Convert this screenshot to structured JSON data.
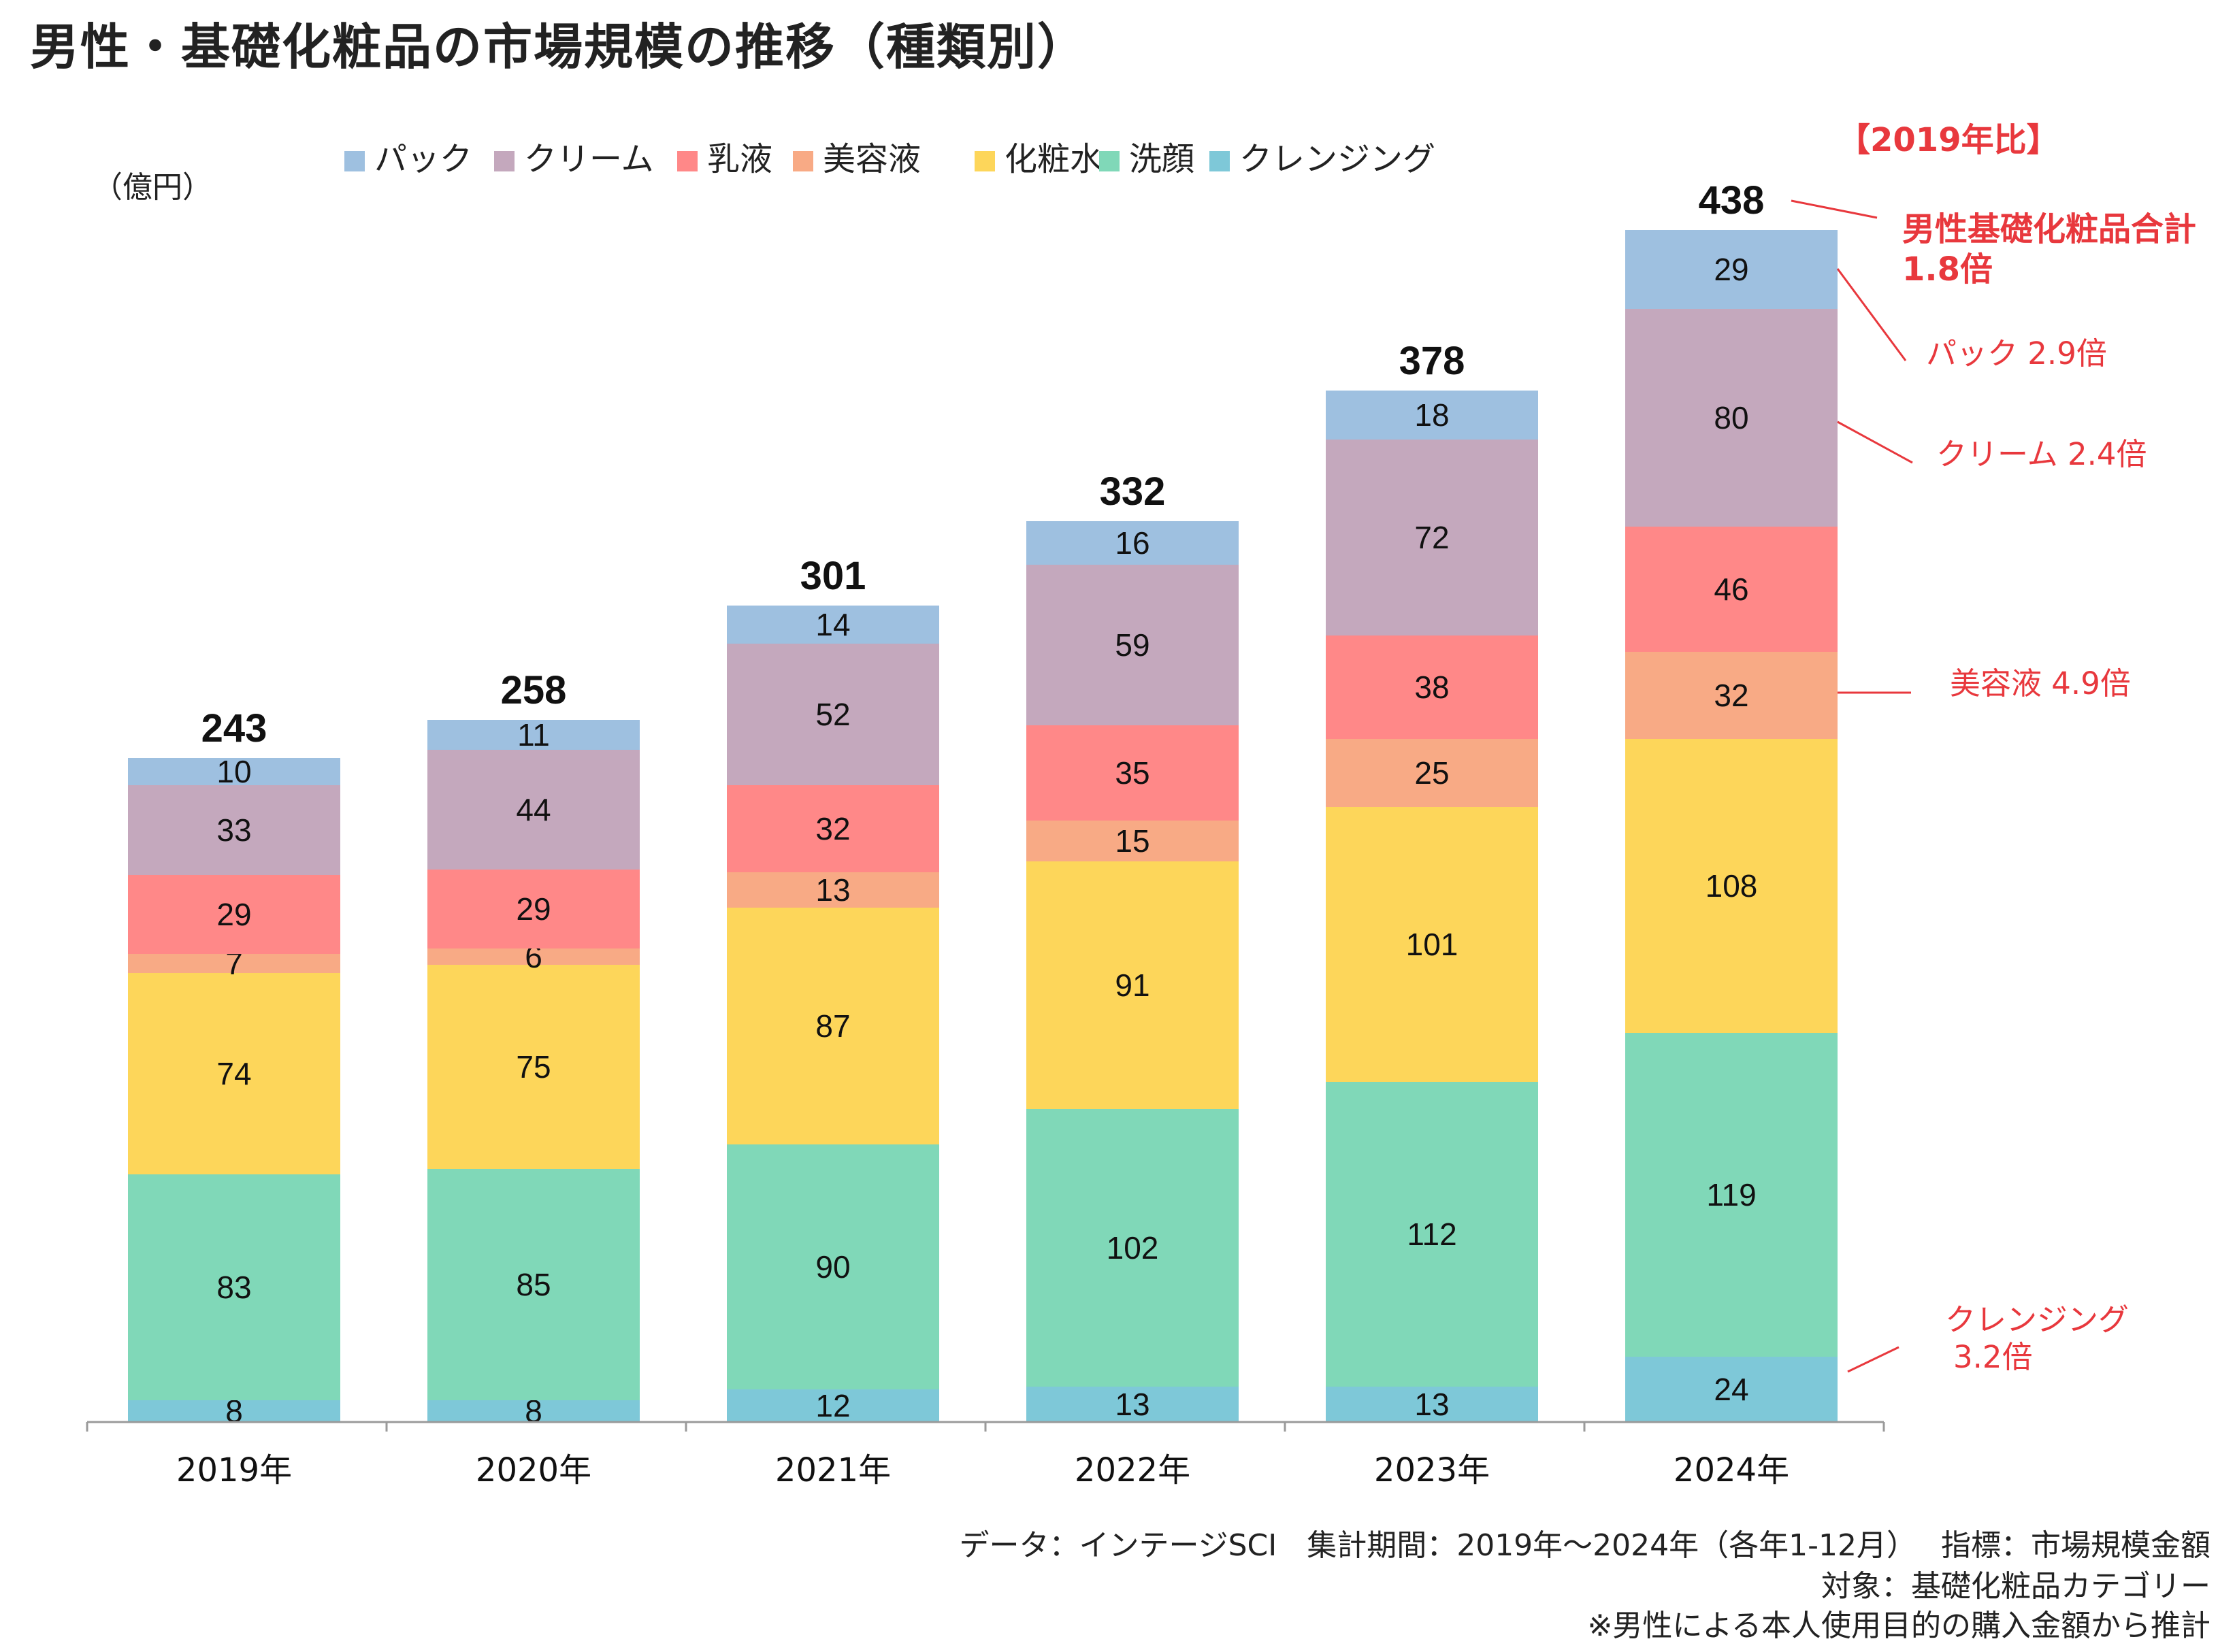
{
  "title": "男性・基礎化粧品の市場規模の推移（種類別）",
  "chart_data": {
    "type": "bar",
    "stacked": true,
    "unit_label": "（億円）",
    "categories": [
      "2019年",
      "2020年",
      "2021年",
      "2022年",
      "2023年",
      "2024年"
    ],
    "series": [
      {
        "name": "クレンジング",
        "color": "#7ec8d8",
        "values": [
          8,
          8,
          12,
          13,
          13,
          24
        ]
      },
      {
        "name": "洗顔",
        "color": "#80d8b8",
        "values": [
          83,
          85,
          90,
          102,
          112,
          119
        ]
      },
      {
        "name": "化粧水",
        "color": "#fdd65a",
        "values": [
          74,
          75,
          87,
          91,
          101,
          108
        ]
      },
      {
        "name": "美容液",
        "color": "#f8aa85",
        "values": [
          7,
          6,
          13,
          15,
          25,
          32
        ]
      },
      {
        "name": "乳液",
        "color": "#ff8888",
        "values": [
          29,
          29,
          32,
          35,
          38,
          46
        ]
      },
      {
        "name": "クリーム",
        "color": "#c4a8bd",
        "values": [
          33,
          44,
          52,
          59,
          72,
          80
        ]
      },
      {
        "name": "パック",
        "color": "#9ec0e0",
        "values": [
          10,
          11,
          14,
          16,
          18,
          29
        ]
      }
    ],
    "legend_order": [
      "パック",
      "クリーム",
      "乳液",
      "美容液",
      "化粧水",
      "洗顔",
      "クレンジング"
    ],
    "totals": [
      243,
      258,
      301,
      332,
      378,
      438
    ],
    "legend_position": "top",
    "grid": false,
    "annotations": {
      "header": "【2019年比】",
      "total_line1": "男性基礎化粧品合計",
      "total_line2": "1.8倍",
      "pack": "パック 2.9倍",
      "cream": "クリーム 2.4倍",
      "serum": "美容液 4.9倍",
      "cleansing_line1": "クレンジング",
      "cleansing_line2": "3.2倍"
    }
  },
  "footer": {
    "line1": "データ：インテージSCI　集計期間：2019年～2024年（各年1-12月）　 指標：市場規模金額",
    "line2": "対象：基礎化粧品カテゴリー",
    "line3": "※男性による本人使用目的の購入金額から推計"
  }
}
